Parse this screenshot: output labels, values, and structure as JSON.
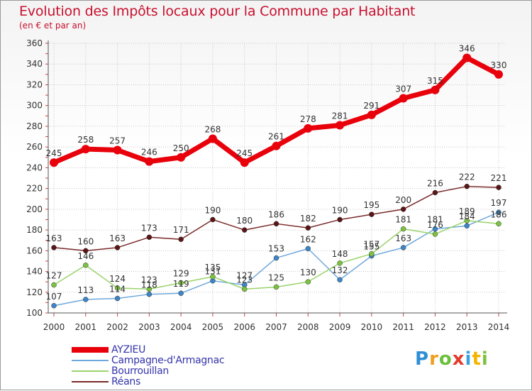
{
  "title": "Evolution des Impôts locaux pour la Commune par Habitant",
  "subtitle": "(en € et par an)",
  "brand": "Proxiti",
  "colors": {
    "title": "#c8102e",
    "grid": "#c8c8c8",
    "axis_text": "#333333",
    "legend_text": "#3333aa"
  },
  "chart_data": {
    "type": "line",
    "x": [
      2000,
      2001,
      2002,
      2003,
      2004,
      2005,
      2006,
      2007,
      2008,
      2009,
      2010,
      2011,
      2012,
      2013,
      2014
    ],
    "ylim": [
      100,
      360
    ],
    "yticks": [
      100,
      120,
      140,
      160,
      180,
      200,
      220,
      240,
      260,
      280,
      300,
      320,
      340,
      360
    ],
    "grid": true,
    "legend_position": "bottom-left",
    "series": [
      {
        "name": "AYZIEU",
        "color": "#e8000b",
        "marker_color": "#e8000b",
        "width": 7,
        "values": [
          245,
          258,
          257,
          246,
          250,
          268,
          245,
          261,
          278,
          281,
          291,
          307,
          315,
          346,
          330
        ],
        "labels": [
          "245",
          "258",
          "257",
          "246",
          "250",
          "268",
          "245",
          "261",
          "278",
          "281",
          "291",
          "307",
          "315",
          "346",
          "330"
        ]
      },
      {
        "name": "Campagne-d'Armagnac",
        "color": "#6fa8dc",
        "marker_color": "#3d85c6",
        "width": 1.5,
        "values": [
          107,
          113,
          114,
          118,
          119,
          131,
          127,
          153,
          162,
          132,
          155,
          163,
          181,
          184,
          197
        ],
        "labels": [
          "107",
          "113",
          "114",
          "118",
          "119",
          "131",
          "127",
          "153",
          "162",
          "132",
          "155",
          "163",
          "181",
          "184",
          "197"
        ]
      },
      {
        "name": "Bourrouillan",
        "color": "#9ad36a",
        "marker_color": "#7cc242",
        "width": 1.5,
        "values": [
          127,
          146,
          124,
          123,
          129,
          135,
          123,
          125,
          130,
          148,
          157,
          181,
          176,
          189,
          186
        ],
        "labels": [
          "127",
          "146",
          "124",
          "123",
          "129",
          "135",
          "123",
          "125",
          "130",
          "148",
          "157",
          "181",
          "176",
          "189",
          "186"
        ]
      },
      {
        "name": "Réans",
        "color": "#7a2a2a",
        "marker_color": "#5a1515",
        "width": 1.5,
        "values": [
          163,
          160,
          163,
          173,
          171,
          190,
          180,
          186,
          182,
          190,
          195,
          200,
          216,
          222,
          221
        ],
        "labels": [
          "163",
          "160",
          "163",
          "173",
          "171",
          "190",
          "180",
          "186",
          "182",
          "190",
          "195",
          "200",
          "216",
          "222",
          "221"
        ]
      }
    ]
  }
}
